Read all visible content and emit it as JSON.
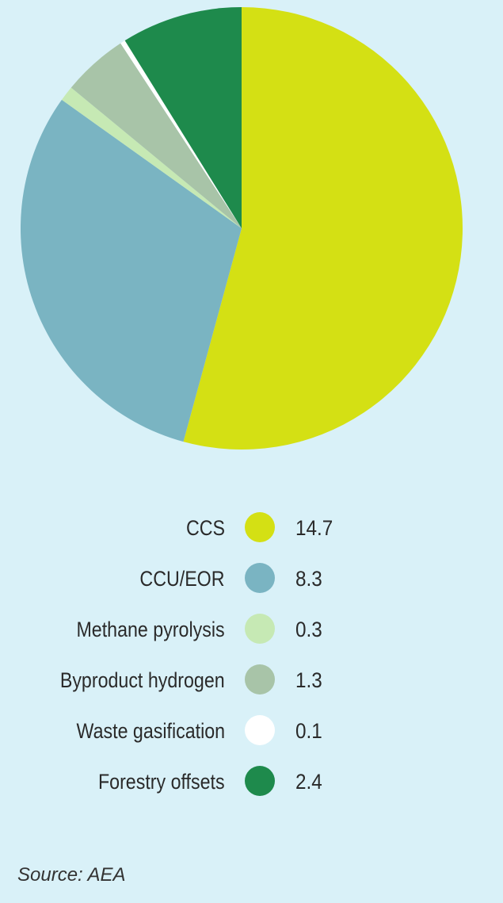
{
  "chart_data": {
    "type": "pie",
    "categories": [
      "CCS",
      "CCU/EOR",
      "Methane pyrolysis",
      "Byproduct hydrogen",
      "Waste gasification",
      "Forestry offsets"
    ],
    "values": [
      14.7,
      8.3,
      0.3,
      1.3,
      0.1,
      2.4
    ],
    "value_labels": [
      "14.7",
      "8.3",
      "0.3",
      "1.3",
      "0.1",
      "2.4"
    ],
    "colors": [
      "#d4e014",
      "#7ab4c2",
      "#c6e9b4",
      "#a8c4a8",
      "#ffffff",
      "#1e8a4c"
    ],
    "start_angle": "12 o'clock, clockwise",
    "legend_position": "bottom"
  },
  "source_text": "Source: AEA"
}
